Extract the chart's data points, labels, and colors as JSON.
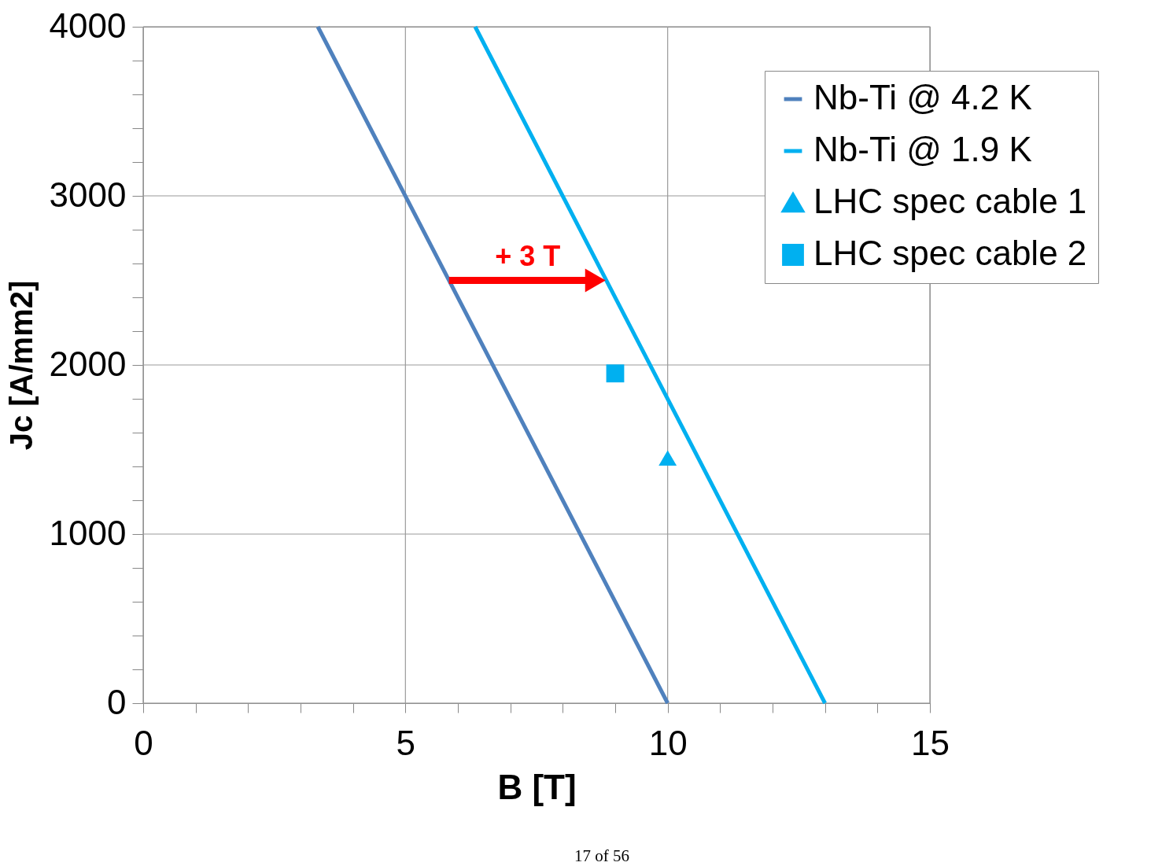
{
  "chart_data": {
    "type": "line",
    "xlabel": "B [T]",
    "ylabel": "Jc [A/mm2]",
    "xlim": [
      0,
      15
    ],
    "ylim": [
      0,
      4000
    ],
    "xticks": [
      0,
      {
        "value": 1,
        "label": null
      },
      {
        "value": 2,
        "label": null
      },
      {
        "value": 3,
        "label": null
      },
      {
        "value": 4,
        "label": null
      },
      5,
      {
        "value": 6,
        "label": null
      },
      {
        "value": 7,
        "label": null
      },
      {
        "value": 8,
        "label": null
      },
      {
        "value": 9,
        "label": null
      },
      10,
      {
        "value": 11,
        "label": null
      },
      {
        "value": 12,
        "label": null
      },
      {
        "value": 13,
        "label": null
      },
      {
        "value": 14,
        "label": null
      },
      15
    ],
    "yticks": [
      0,
      {
        "value": 200,
        "label": null
      },
      {
        "value": 400,
        "label": null
      },
      {
        "value": 600,
        "label": null
      },
      {
        "value": 800,
        "label": null
      },
      1000,
      {
        "value": 1200,
        "label": null
      },
      {
        "value": 1400,
        "label": null
      },
      {
        "value": 1600,
        "label": null
      },
      {
        "value": 1800,
        "label": null
      },
      2000,
      {
        "value": 2200,
        "label": null
      },
      {
        "value": 2400,
        "label": null
      },
      {
        "value": 2600,
        "label": null
      },
      {
        "value": 2800,
        "label": null
      },
      3000,
      {
        "value": 3200,
        "label": null
      },
      {
        "value": 3400,
        "label": null
      },
      {
        "value": 3600,
        "label": null
      },
      {
        "value": 3800,
        "label": null
      },
      4000
    ],
    "grid": true,
    "legend": "top right",
    "series": [
      {
        "name": "Nb-Ti @ 4.2 K",
        "marker": "none",
        "color": "#4f81bd",
        "x": [
          3.33,
          10
        ],
        "values": [
          4000,
          0
        ]
      },
      {
        "name": "Nb-Ti @ 1.9 K",
        "marker": "none",
        "color": "#00b0f0",
        "x": [
          6.33,
          13
        ],
        "values": [
          4000,
          0
        ]
      },
      {
        "name": "LHC spec cable 1",
        "type": "scatter",
        "marker": "triangle",
        "color": "#00b0f0",
        "x": [
          10
        ],
        "values": [
          1450
        ]
      },
      {
        "name": "LHC spec cable 2",
        "type": "scatter",
        "marker": "square",
        "color": "#00b0f0",
        "x": [
          9
        ],
        "values": [
          1950
        ]
      }
    ],
    "annotations": [
      {
        "text": "+ 3 T",
        "x": 5.83,
        "y": 2500
      },
      "17 of 56"
    ]
  }
}
